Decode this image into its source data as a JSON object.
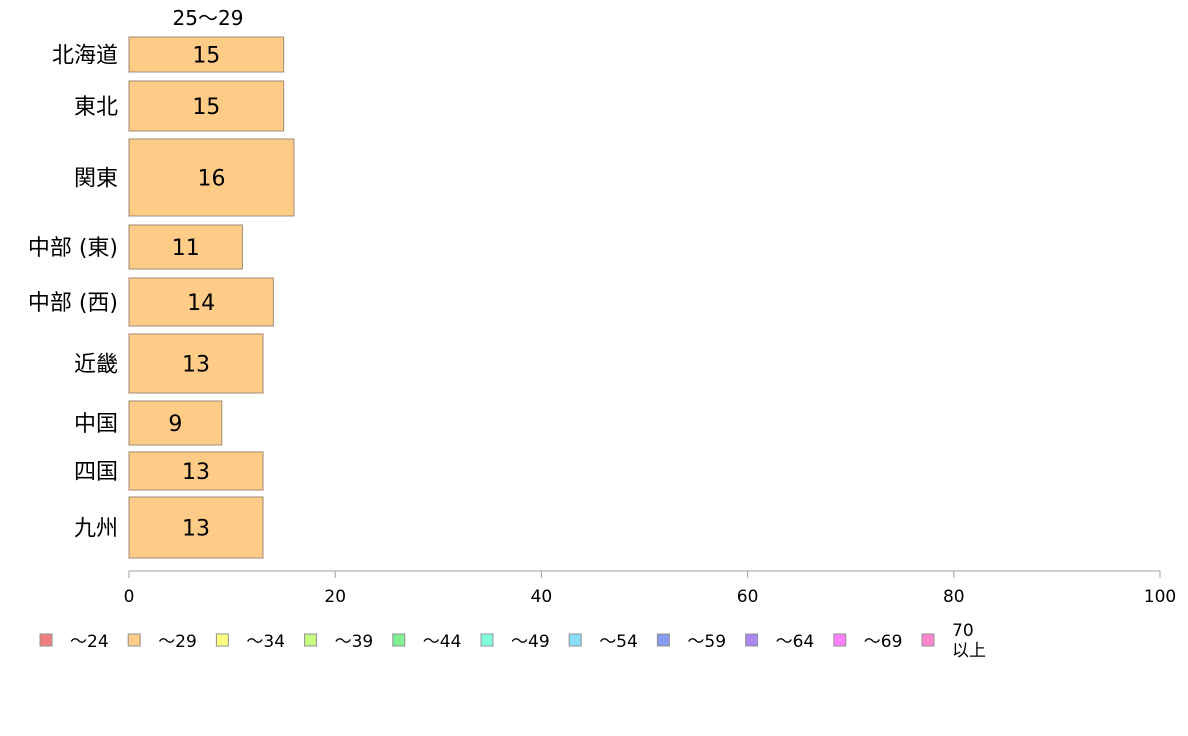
{
  "chart_data": {
    "type": "bar",
    "orientation": "horizontal",
    "column_title": "25〜29",
    "categories": [
      "北海道",
      "東北",
      "関東",
      "中部 (東)",
      "中部 (西)",
      "近畿",
      "中国",
      "四国",
      "九州"
    ],
    "series": [
      {
        "name": "〜29",
        "color": "#ffcc88",
        "values": [
          15,
          15,
          16,
          11,
          14,
          13,
          9,
          13,
          13
        ]
      }
    ],
    "xlim": [
      0,
      100
    ],
    "xticks": [
      "0",
      "20",
      "40",
      "60",
      "80",
      "100"
    ],
    "grid": false,
    "legend_position": "bottom",
    "legend": [
      {
        "label": "〜24",
        "color": "#f08080"
      },
      {
        "label": "〜29",
        "color": "#ffcc88"
      },
      {
        "label": "〜34",
        "color": "#ffff80"
      },
      {
        "label": "〜39",
        "color": "#c8ff80"
      },
      {
        "label": "〜44",
        "color": "#80f090"
      },
      {
        "label": "〜49",
        "color": "#80ffdd"
      },
      {
        "label": "〜54",
        "color": "#88ddf8"
      },
      {
        "label": "〜59",
        "color": "#8899f0"
      },
      {
        "label": "〜64",
        "color": "#aa88f0"
      },
      {
        "label": "〜69",
        "color": "#ff80ff"
      },
      {
        "label": "70\n以上",
        "color": "#ff88cc"
      }
    ]
  }
}
